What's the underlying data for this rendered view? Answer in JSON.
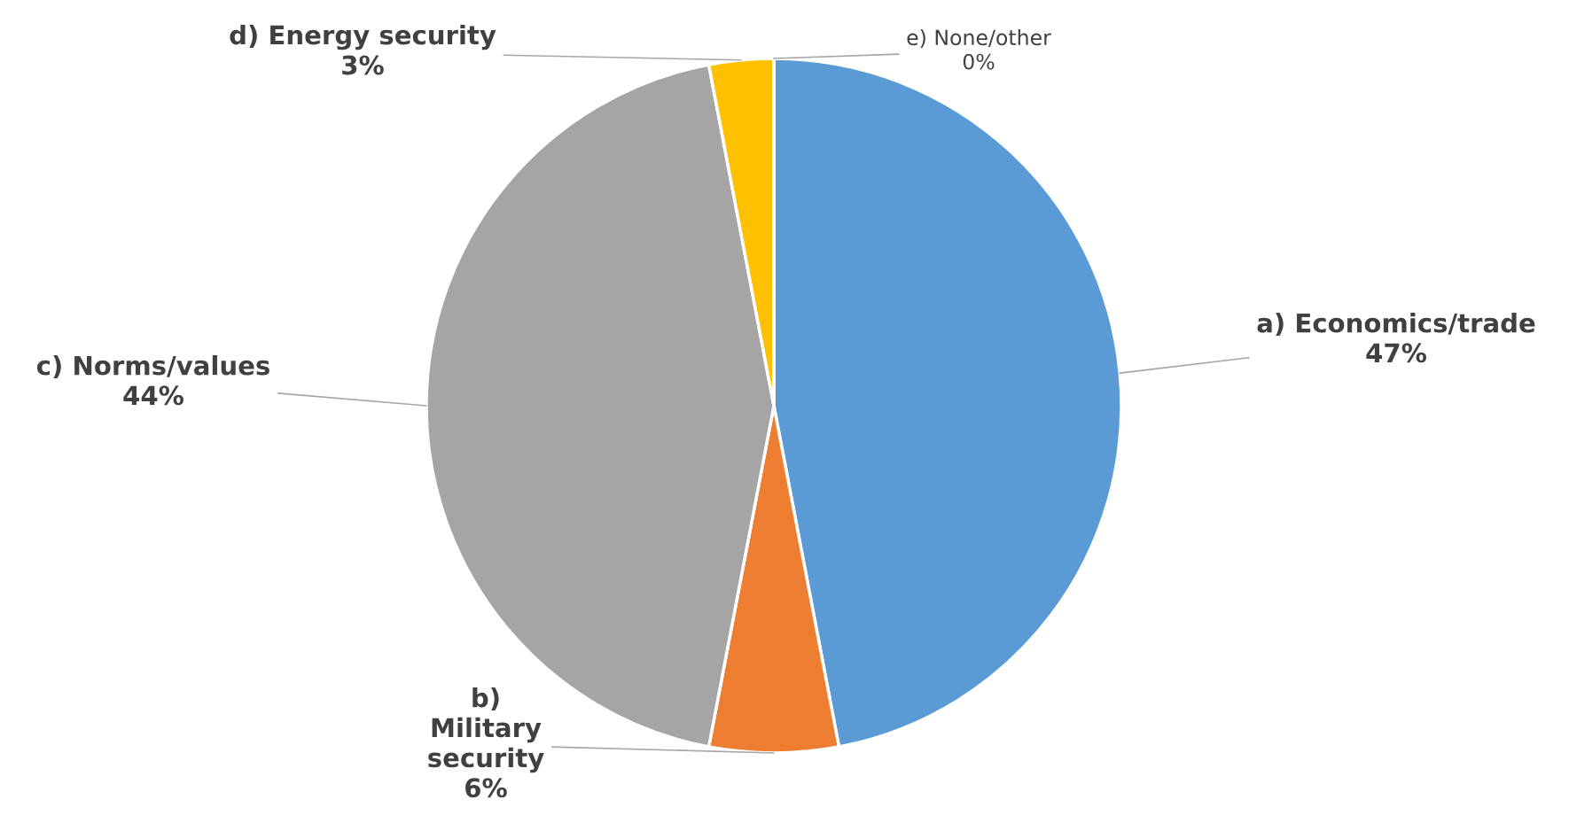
{
  "chart_data": {
    "type": "pie",
    "categories": [
      "a) Economics/trade",
      "b)\nMilitary\nsecurity",
      "c) Norms/values",
      "d) Energy security",
      "e) None/other"
    ],
    "values": [
      47,
      6,
      44,
      3,
      0
    ],
    "value_labels": [
      "47%",
      "6%",
      "44%",
      "3%",
      "0%"
    ],
    "colors": [
      "#5b9bd5",
      "#ed7d31",
      "#a5a5a5",
      "#ffc000",
      "#4472c4"
    ]
  }
}
